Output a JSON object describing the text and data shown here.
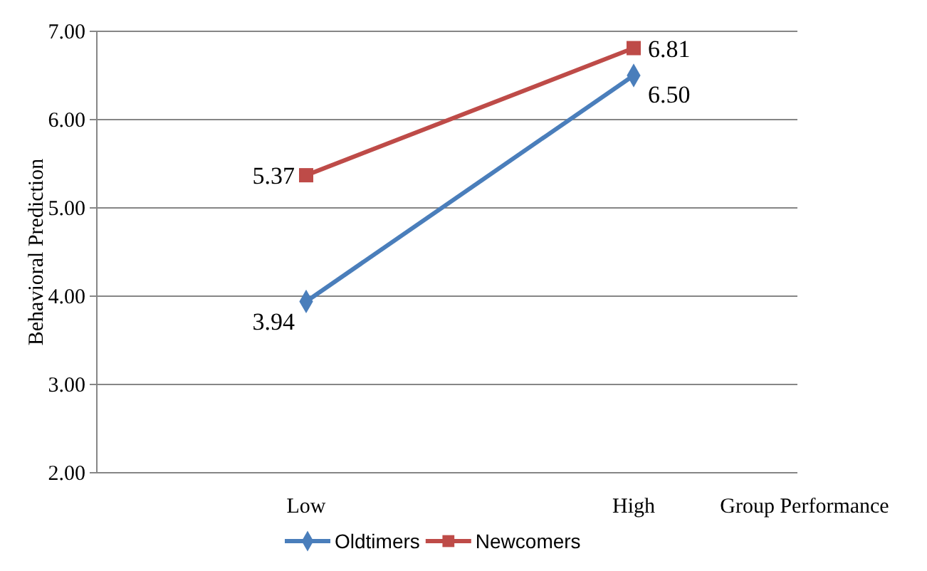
{
  "chart_data": {
    "type": "line",
    "ylabel": "Behavioral Prediction",
    "xlabel": "Group Performance",
    "categories": [
      "Low",
      "High"
    ],
    "ylim": [
      2,
      7
    ],
    "yticks": [
      {
        "value": 2,
        "label": "2.00"
      },
      {
        "value": 3,
        "label": "3.00"
      },
      {
        "value": 4,
        "label": "4.00"
      },
      {
        "value": 5,
        "label": "5.00"
      },
      {
        "value": 6,
        "label": "6.00"
      },
      {
        "value": 7,
        "label": "7.00"
      }
    ],
    "grid": "y",
    "legend": "bottom",
    "series": [
      {
        "name": "Oldtimers",
        "color": "#4a7ebb",
        "marker": "diamond",
        "values": [
          3.94,
          6.5
        ],
        "value_labels": [
          "3.94",
          "6.50"
        ]
      },
      {
        "name": "Newcomers",
        "color": "#be4b48",
        "marker": "square",
        "values": [
          5.37,
          6.81
        ],
        "value_labels": [
          "5.37",
          "6.81"
        ]
      }
    ]
  }
}
